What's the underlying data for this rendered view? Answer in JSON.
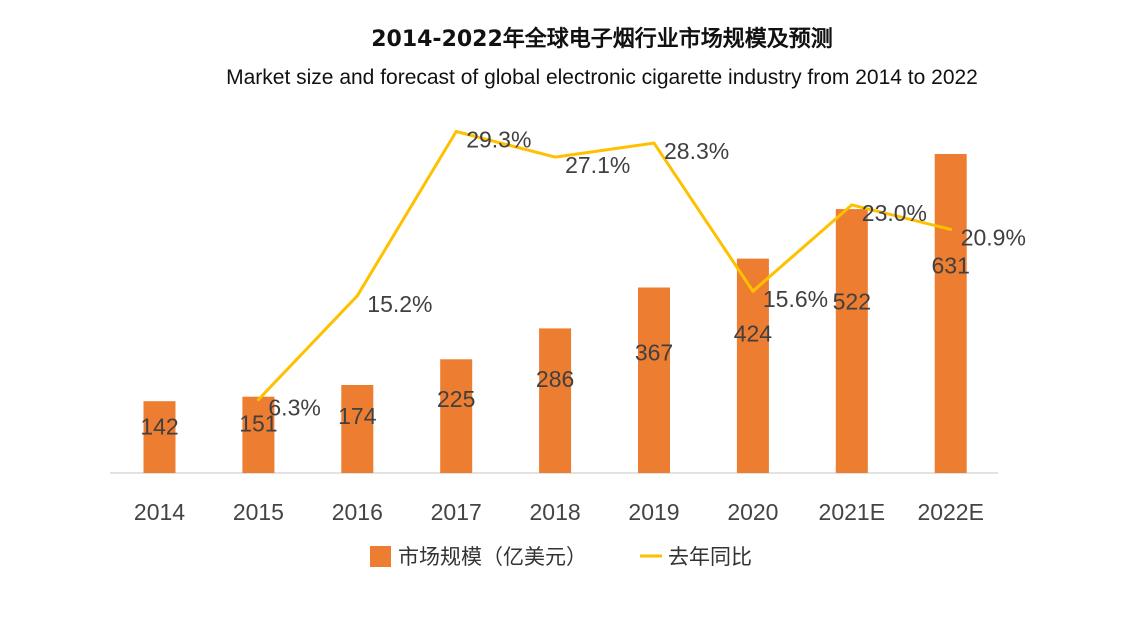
{
  "chart_data": {
    "type": "bar+line",
    "title": "2014-2022年全球电子烟行业市场规模及预测",
    "subtitle": "Market size and forecast of global electronic cigarette industry from 2014 to 2022",
    "categories": [
      "2014",
      "2015",
      "2016",
      "2017",
      "2018",
      "2019",
      "2020",
      "2021E",
      "2022E"
    ],
    "series": [
      {
        "name": "市场规模（亿美元）",
        "type": "bar",
        "color": "#ED7D31",
        "values": [
          142,
          151,
          174,
          225,
          286,
          367,
          424,
          522,
          631
        ],
        "labels": [
          "142",
          "151",
          "174",
          "225",
          "286",
          "367",
          "424",
          "522",
          "631"
        ]
      },
      {
        "name": "去年同比",
        "type": "line",
        "color": "#FFC000",
        "values": [
          null,
          6.3,
          15.2,
          29.3,
          27.1,
          28.3,
          15.6,
          23.0,
          20.9
        ],
        "labels": [
          "",
          "6.3%",
          "15.2%",
          "29.3%",
          "27.1%",
          "28.3%",
          "15.6%",
          "23.0%",
          "20.9%"
        ]
      }
    ],
    "bar_axis": {
      "min": 0,
      "max": 631
    },
    "line_axis": {
      "min": 0,
      "max": 32
    },
    "legend_position": "bottom-center",
    "grid": false
  }
}
